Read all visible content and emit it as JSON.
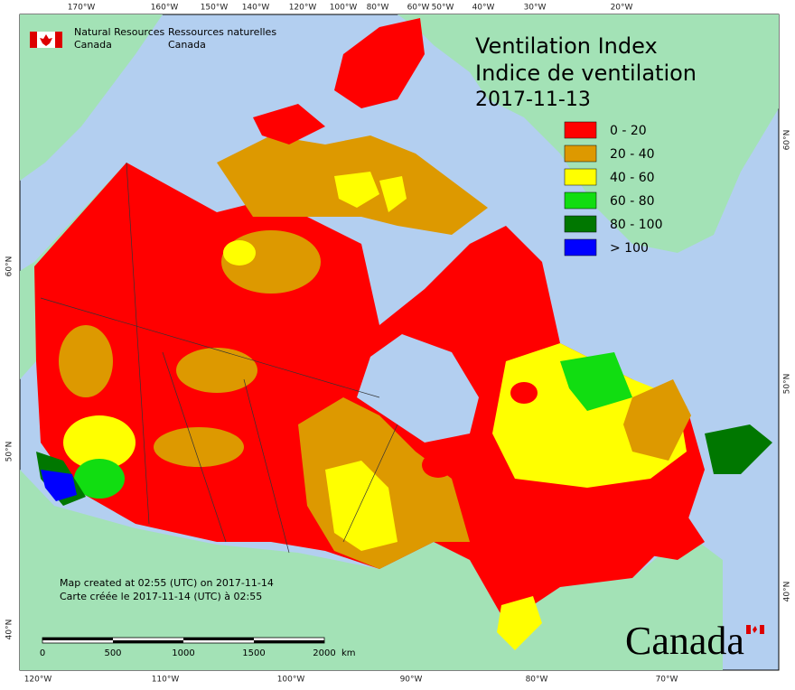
{
  "header": {
    "dept_en": [
      "Natural Resources",
      "Canada"
    ],
    "dept_fr": [
      "Ressources naturelles",
      "Canada"
    ]
  },
  "title": [
    "Ventilation Index",
    "Indice de ventilation",
    "2017-11-13"
  ],
  "legend": [
    {
      "label": "0 - 20",
      "color": "#ff0000"
    },
    {
      "label": "20 - 40",
      "color": "#dd9900"
    },
    {
      "label": "40 - 60",
      "color": "#ffff00"
    },
    {
      "label": "60 - 80",
      "color": "#11dd11"
    },
    {
      "label": "80 - 100",
      "color": "#007700"
    },
    {
      "label": "> 100",
      "color": "#0000ff"
    }
  ],
  "graticule": {
    "top": [
      "170°W",
      "160°W",
      "150°W",
      "140°W",
      "120°W",
      "100°W",
      "80°W",
      "60°W",
      "50°W",
      "40°W",
      "30°W",
      "20°W"
    ],
    "bottom": [
      "120°W",
      "110°W",
      "100°W",
      "90°W",
      "80°W",
      "70°W"
    ],
    "left": [
      "60°N",
      "50°N",
      "40°N"
    ],
    "right": [
      "60°N",
      "50°N",
      "40°N"
    ]
  },
  "notes": [
    "Map created at 02:55 (UTC) on 2017-11-14",
    "Carte créée le 2017-11-14 (UTC) à 02:55"
  ],
  "scale_bar": {
    "labels": [
      "0",
      "500",
      "1000",
      "1500",
      "2000"
    ],
    "unit": "km"
  },
  "wordmark": "Canada"
}
